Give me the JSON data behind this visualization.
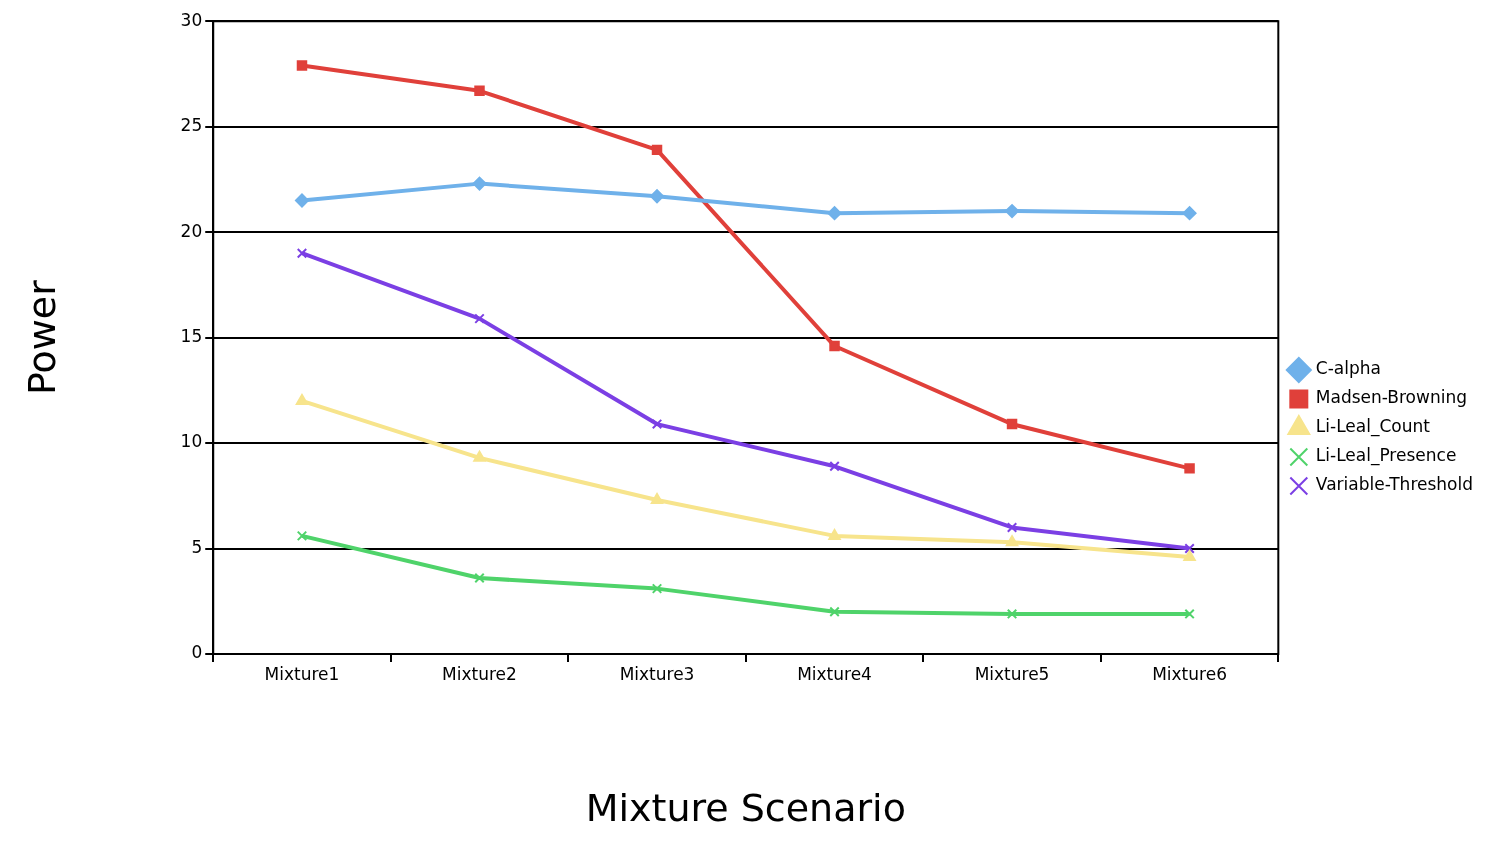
{
  "chart_data": {
    "type": "line",
    "xlabel": "Mixture Scenario",
    "ylabel": "Power",
    "categories": [
      "Mixture1",
      "Mixture2",
      "Mixture3",
      "Mixture4",
      "Mixture5",
      "Mixture6"
    ],
    "series": [
      {
        "name": "C-alpha",
        "color": "#6fb1ea",
        "marker": "diamond",
        "values": [
          21.5,
          22.3,
          21.7,
          20.9,
          21.0,
          20.9
        ]
      },
      {
        "name": "Madsen-Browning",
        "color": "#e0403a",
        "marker": "square",
        "values": [
          27.9,
          26.7,
          23.9,
          14.6,
          10.9,
          8.8
        ]
      },
      {
        "name": "Li-Leal_Count",
        "color": "#f7e48c",
        "marker": "triangle",
        "values": [
          12.0,
          9.3,
          7.3,
          5.6,
          5.3,
          4.6
        ]
      },
      {
        "name": "Li-Leal_Presence",
        "color": "#4fd36a",
        "marker": "cross",
        "values": [
          5.6,
          3.6,
          3.1,
          2.0,
          1.9,
          1.9
        ]
      },
      {
        "name": "Variable-Threshold",
        "color": "#7b3fe4",
        "marker": "cross",
        "values": [
          19.0,
          15.9,
          10.9,
          8.9,
          6.0,
          5.0
        ]
      }
    ],
    "ylim": [
      0,
      30
    ],
    "yticks": [
      0,
      5,
      10,
      15,
      20,
      25,
      30
    ],
    "grid": "y",
    "legend": "right"
  }
}
